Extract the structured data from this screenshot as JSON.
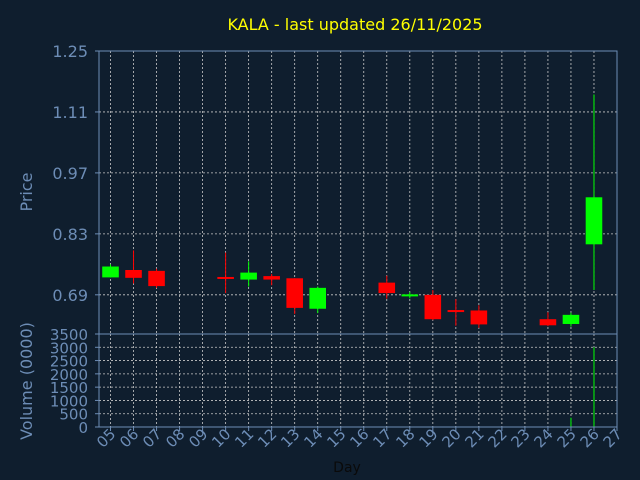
{
  "chart_data": [
    {
      "type": "candlestick",
      "title": "KALA - last updated 26/11/2025",
      "ylabel": "Price",
      "ylim": [
        0.6,
        1.25
      ],
      "yticks": [
        "1.25",
        "1.11",
        "0.97",
        "0.83",
        "0.69"
      ],
      "ytick_values": [
        1.25,
        1.11,
        0.97,
        0.83,
        0.69
      ],
      "grid": true,
      "up_color": "#00ff00",
      "down_color": "#ff0000",
      "candles": [
        {
          "day": "05",
          "open": 0.73,
          "high": 0.76,
          "low": 0.73,
          "close": 0.755
        },
        {
          "day": "06",
          "open": 0.747,
          "high": 0.792,
          "low": 0.716,
          "close": 0.729
        },
        {
          "day": "07",
          "open": 0.745,
          "high": 0.75,
          "low": 0.706,
          "close": 0.71
        },
        {
          "day": "10",
          "open": 0.731,
          "high": 0.787,
          "low": 0.694,
          "close": 0.729
        },
        {
          "day": "11",
          "open": 0.725,
          "high": 0.767,
          "low": 0.709,
          "close": 0.741
        },
        {
          "day": "12",
          "open": 0.733,
          "high": 0.738,
          "low": 0.712,
          "close": 0.725
        },
        {
          "day": "13",
          "open": 0.728,
          "high": 0.728,
          "low": 0.646,
          "close": 0.66
        },
        {
          "day": "14",
          "open": 0.658,
          "high": 0.709,
          "low": 0.648,
          "close": 0.706
        },
        {
          "day": "17",
          "open": 0.718,
          "high": 0.734,
          "low": 0.681,
          "close": 0.694
        },
        {
          "day": "18",
          "open": 0.689,
          "high": 0.696,
          "low": 0.682,
          "close": 0.691
        },
        {
          "day": "19",
          "open": 0.69,
          "high": 0.701,
          "low": 0.632,
          "close": 0.634
        },
        {
          "day": "20",
          "open": 0.655,
          "high": 0.68,
          "low": 0.619,
          "close": 0.652
        },
        {
          "day": "21",
          "open": 0.654,
          "high": 0.666,
          "low": 0.614,
          "close": 0.622
        },
        {
          "day": "24",
          "open": 0.634,
          "high": 0.65,
          "low": 0.618,
          "close": 0.62
        },
        {
          "day": "25",
          "open": 0.623,
          "high": 0.649,
          "low": 0.617,
          "close": 0.644
        },
        {
          "day": "26",
          "open": 0.806,
          "high": 1.15,
          "low": 0.701,
          "close": 0.914
        }
      ]
    },
    {
      "type": "bar",
      "ylabel": "Volume (0000)",
      "xlabel": "Day",
      "ylim": [
        0,
        3500
      ],
      "yticks": [
        "3500",
        "3000",
        "2500",
        "2000",
        "1500",
        "1000",
        "500",
        "0"
      ],
      "ytick_values": [
        3500,
        3000,
        2500,
        2000,
        1500,
        1000,
        500,
        0
      ],
      "categories": [
        "05",
        "06",
        "07",
        "08",
        "09",
        "10",
        "11",
        "12",
        "13",
        "14",
        "15",
        "16",
        "17",
        "18",
        "19",
        "20",
        "21",
        "22",
        "23",
        "24",
        "25",
        "26",
        "27"
      ],
      "values": [
        3,
        10,
        5,
        0,
        0,
        6,
        5,
        4,
        15,
        20,
        0,
        0,
        8,
        5,
        12,
        7,
        8,
        0,
        0,
        6,
        350,
        3000,
        0
      ],
      "bar_color": "#00ff00"
    }
  ]
}
